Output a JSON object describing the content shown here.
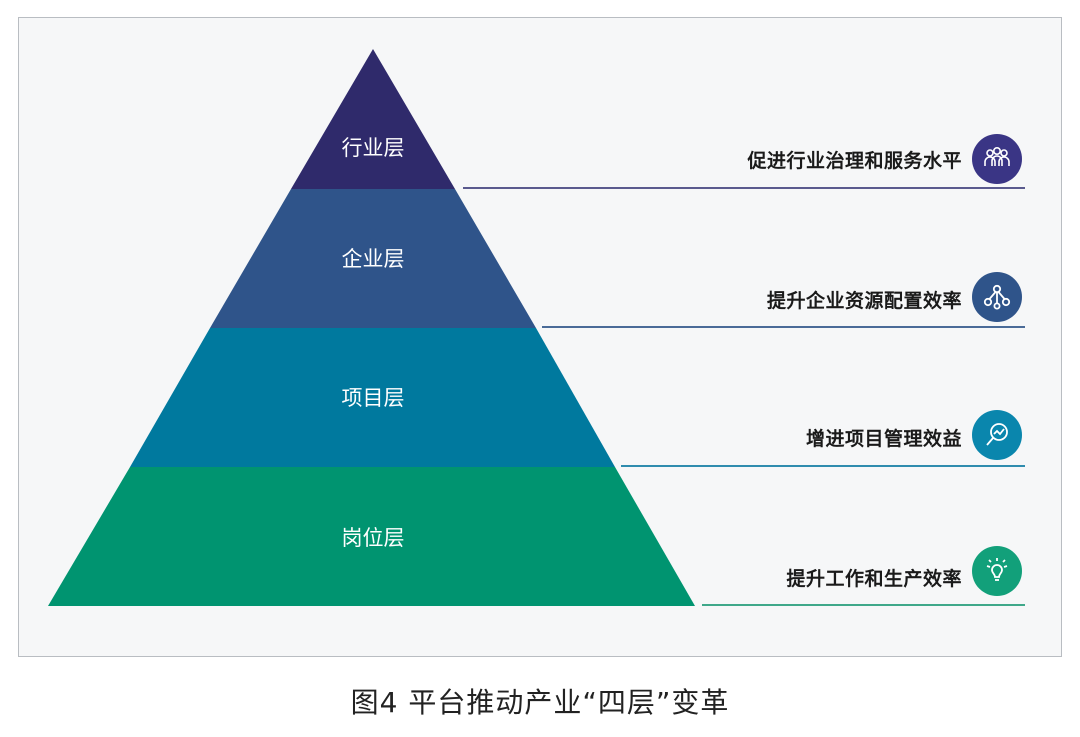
{
  "diagram": {
    "layers": [
      {
        "label": "行业层",
        "benefit": "促进行业治理和服务水平",
        "icon": "people-group-icon",
        "color": "#2f2a6b"
      },
      {
        "label": "企业层",
        "benefit": "提升企业资源配置效率",
        "icon": "network-nodes-icon",
        "color": "#2f548a"
      },
      {
        "label": "项目层",
        "benefit": "增进项目管理效益",
        "icon": "magnifier-chart-icon",
        "color": "#00799e"
      },
      {
        "label": "岗位层",
        "benefit": "提升工作和生产效率",
        "icon": "lightbulb-icon",
        "color": "#009470"
      }
    ]
  },
  "caption": "图4  平台推动产业“四层”变革"
}
